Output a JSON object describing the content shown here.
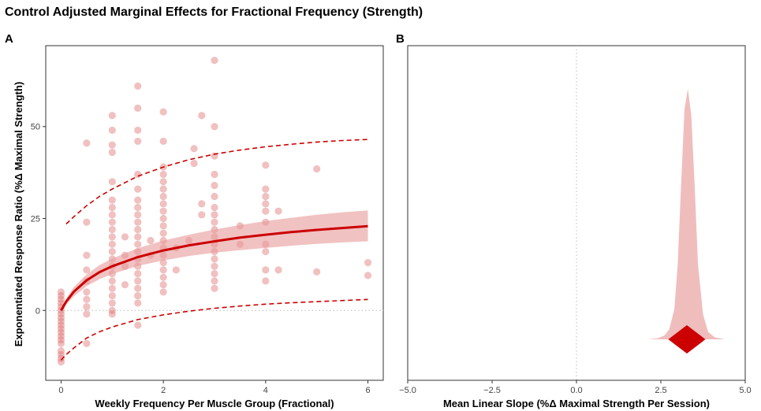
{
  "title": "Control Adjusted Marginal Effects for Fractional Frequency (Strength)",
  "colors": {
    "accent": "#cc0000",
    "band": "#e89a9a",
    "point": "#dd6a6a"
  },
  "chart_data": [
    {
      "panel": "A",
      "type": "scatter",
      "xlabel": "Weekly Frequency Per Muscle Group (Fractional)",
      "ylabel": "Exponentiated Response Ratio (%Δ Maximal Strength)",
      "xlim": [
        -0.3,
        6.3
      ],
      "ylim": [
        -19,
        72
      ],
      "xticks": [
        0,
        2,
        4,
        6
      ],
      "yticks": [
        0,
        25,
        50
      ],
      "reference_line_y": 0,
      "fit": {
        "x": [
          0,
          0.1,
          0.25,
          0.5,
          0.75,
          1,
          1.5,
          2,
          2.5,
          3,
          3.5,
          4,
          4.5,
          5,
          5.5,
          6
        ],
        "mean": [
          0,
          2.4,
          5.1,
          8.2,
          10.4,
          12.0,
          14.5,
          16.3,
          17.7,
          18.8,
          19.8,
          20.6,
          21.3,
          21.9,
          22.4,
          22.9
        ],
        "lower": [
          -0.5,
          1.6,
          3.8,
          6.6,
          8.5,
          9.9,
          12.1,
          13.6,
          14.8,
          15.7,
          16.4,
          17.0,
          17.6,
          18.1,
          18.5,
          18.8
        ],
        "upper": [
          0.5,
          3.2,
          6.4,
          9.8,
          12.3,
          14.1,
          16.9,
          19.0,
          20.6,
          22.0,
          23.2,
          24.3,
          25.2,
          26.0,
          26.7,
          27.2
        ],
        "pred_lower": [
          -13.5,
          -12.0,
          -10.2,
          -7.5,
          -5.8,
          -4.5,
          -2.5,
          -1.2,
          -0.2,
          0.6,
          1.2,
          1.7,
          2.1,
          2.4,
          2.7,
          3.0
        ],
        "pred_upper": [
          22.0,
          23.5,
          25.5,
          28.5,
          31.0,
          33.0,
          36.5,
          39.0,
          41.0,
          42.5,
          43.6,
          44.5,
          45.2,
          45.8,
          46.2,
          46.5
        ]
      },
      "points": [
        {
          "x": 0,
          "y": 3
        },
        {
          "x": 0,
          "y": 1
        },
        {
          "x": 0,
          "y": -1
        },
        {
          "x": 0,
          "y": -2
        },
        {
          "x": 0,
          "y": -3
        },
        {
          "x": 0,
          "y": -4
        },
        {
          "x": 0,
          "y": -5
        },
        {
          "x": 0,
          "y": -6
        },
        {
          "x": 0,
          "y": -8
        },
        {
          "x": 0,
          "y": -9
        },
        {
          "x": 0,
          "y": -11
        },
        {
          "x": 0,
          "y": -12
        },
        {
          "x": 0,
          "y": -13
        },
        {
          "x": 0,
          "y": 0
        },
        {
          "x": 0,
          "y": 2
        },
        {
          "x": 0,
          "y": 4
        },
        {
          "x": 0,
          "y": 5
        },
        {
          "x": 0,
          "y": -7
        },
        {
          "x": 0,
          "y": -14
        },
        {
          "x": 0.5,
          "y": 45.5
        },
        {
          "x": 0.5,
          "y": 15
        },
        {
          "x": 0.5,
          "y": 8
        },
        {
          "x": 0.5,
          "y": 5
        },
        {
          "x": 0.5,
          "y": 3
        },
        {
          "x": 0.5,
          "y": 1
        },
        {
          "x": 0.5,
          "y": -1
        },
        {
          "x": 0.5,
          "y": -9
        },
        {
          "x": 0.5,
          "y": 11
        },
        {
          "x": 0.5,
          "y": 24
        },
        {
          "x": 1,
          "y": 53
        },
        {
          "x": 1,
          "y": 49
        },
        {
          "x": 1,
          "y": 45
        },
        {
          "x": 1,
          "y": 43
        },
        {
          "x": 1,
          "y": 35
        },
        {
          "x": 1,
          "y": 30
        },
        {
          "x": 1,
          "y": 28
        },
        {
          "x": 1,
          "y": 26
        },
        {
          "x": 1,
          "y": 24
        },
        {
          "x": 1,
          "y": 22
        },
        {
          "x": 1,
          "y": 20
        },
        {
          "x": 1,
          "y": 18
        },
        {
          "x": 1,
          "y": 16
        },
        {
          "x": 1,
          "y": 14
        },
        {
          "x": 1,
          "y": 12
        },
        {
          "x": 1,
          "y": 10
        },
        {
          "x": 1,
          "y": 8
        },
        {
          "x": 1,
          "y": 6
        },
        {
          "x": 1,
          "y": 4
        },
        {
          "x": 1,
          "y": 2
        },
        {
          "x": 1,
          "y": 0
        },
        {
          "x": 1,
          "y": -1
        },
        {
          "x": 1.25,
          "y": 20
        },
        {
          "x": 1.25,
          "y": 15
        },
        {
          "x": 1.25,
          "y": 12
        },
        {
          "x": 1.25,
          "y": 7
        },
        {
          "x": 1.5,
          "y": 61
        },
        {
          "x": 1.5,
          "y": 55
        },
        {
          "x": 1.5,
          "y": 49
        },
        {
          "x": 1.5,
          "y": 46
        },
        {
          "x": 1.5,
          "y": 37
        },
        {
          "x": 1.5,
          "y": 33
        },
        {
          "x": 1.5,
          "y": 30
        },
        {
          "x": 1.5,
          "y": 28
        },
        {
          "x": 1.5,
          "y": 26
        },
        {
          "x": 1.5,
          "y": 24
        },
        {
          "x": 1.5,
          "y": 22
        },
        {
          "x": 1.5,
          "y": 20
        },
        {
          "x": 1.5,
          "y": 18
        },
        {
          "x": 1.5,
          "y": 16
        },
        {
          "x": 1.5,
          "y": 14
        },
        {
          "x": 1.5,
          "y": 12
        },
        {
          "x": 1.5,
          "y": 10
        },
        {
          "x": 1.5,
          "y": 8
        },
        {
          "x": 1.5,
          "y": 6
        },
        {
          "x": 1.5,
          "y": 4
        },
        {
          "x": 1.5,
          "y": 2
        },
        {
          "x": 1.5,
          "y": -4
        },
        {
          "x": 1.75,
          "y": 19
        },
        {
          "x": 1.75,
          "y": 15
        },
        {
          "x": 2,
          "y": 54
        },
        {
          "x": 2,
          "y": 46
        },
        {
          "x": 2,
          "y": 39
        },
        {
          "x": 2,
          "y": 37
        },
        {
          "x": 2,
          "y": 35
        },
        {
          "x": 2,
          "y": 33
        },
        {
          "x": 2,
          "y": 31
        },
        {
          "x": 2,
          "y": 29
        },
        {
          "x": 2,
          "y": 27
        },
        {
          "x": 2,
          "y": 25
        },
        {
          "x": 2,
          "y": 23
        },
        {
          "x": 2,
          "y": 21
        },
        {
          "x": 2,
          "y": 19
        },
        {
          "x": 2,
          "y": 17
        },
        {
          "x": 2,
          "y": 15
        },
        {
          "x": 2,
          "y": 13
        },
        {
          "x": 2,
          "y": 11
        },
        {
          "x": 2,
          "y": 9
        },
        {
          "x": 2,
          "y": 7
        },
        {
          "x": 2,
          "y": 5
        },
        {
          "x": 2.25,
          "y": 11
        },
        {
          "x": 2.25,
          "y": 17
        },
        {
          "x": 2.5,
          "y": 19
        },
        {
          "x": 2.6,
          "y": 44
        },
        {
          "x": 2.6,
          "y": 40
        },
        {
          "x": 2.75,
          "y": 53
        },
        {
          "x": 2.75,
          "y": 29
        },
        {
          "x": 2.75,
          "y": 26
        },
        {
          "x": 3,
          "y": 68
        },
        {
          "x": 3,
          "y": 50
        },
        {
          "x": 3,
          "y": 42
        },
        {
          "x": 3,
          "y": 37
        },
        {
          "x": 3,
          "y": 34
        },
        {
          "x": 3,
          "y": 31
        },
        {
          "x": 3,
          "y": 28
        },
        {
          "x": 3,
          "y": 26
        },
        {
          "x": 3,
          "y": 24
        },
        {
          "x": 3,
          "y": 22
        },
        {
          "x": 3,
          "y": 20
        },
        {
          "x": 3,
          "y": 18
        },
        {
          "x": 3,
          "y": 16
        },
        {
          "x": 3,
          "y": 14
        },
        {
          "x": 3,
          "y": 12
        },
        {
          "x": 3,
          "y": 10
        },
        {
          "x": 3,
          "y": 8
        },
        {
          "x": 3,
          "y": 6
        },
        {
          "x": 3.5,
          "y": 23
        },
        {
          "x": 3.5,
          "y": 18
        },
        {
          "x": 4,
          "y": 39.5
        },
        {
          "x": 4,
          "y": 33
        },
        {
          "x": 4,
          "y": 31
        },
        {
          "x": 4,
          "y": 29
        },
        {
          "x": 4,
          "y": 27
        },
        {
          "x": 4,
          "y": 24
        },
        {
          "x": 4,
          "y": 18
        },
        {
          "x": 4,
          "y": 16
        },
        {
          "x": 4,
          "y": 11
        },
        {
          "x": 4,
          "y": 8
        },
        {
          "x": 4.25,
          "y": 27
        },
        {
          "x": 4.25,
          "y": 11
        },
        {
          "x": 5,
          "y": 38.5
        },
        {
          "x": 5,
          "y": 10.5
        },
        {
          "x": 6,
          "y": 13
        },
        {
          "x": 6,
          "y": 9.5
        }
      ]
    },
    {
      "panel": "B",
      "type": "area",
      "xlabel": "Mean Linear Slope (%Δ Maximal Strength Per Session)",
      "xlim": [
        -5.0,
        5.0
      ],
      "xticks": [
        -5.0,
        -2.5,
        0.0,
        2.5,
        5.0
      ],
      "xtick_labels": [
        "−5.0",
        "−2.5",
        "0.0",
        "2.5",
        "5.0"
      ],
      "reference_line_x": 0,
      "density": {
        "x": [
          2.1,
          2.4,
          2.6,
          2.75,
          2.9,
          3.0,
          3.1,
          3.2,
          3.3,
          3.4,
          3.5,
          3.6,
          3.75,
          3.9,
          4.1,
          4.4
        ],
        "height": [
          0,
          0.004,
          0.015,
          0.04,
          0.12,
          0.3,
          0.62,
          0.92,
          1.0,
          0.9,
          0.62,
          0.3,
          0.1,
          0.03,
          0.008,
          0
        ]
      },
      "point_estimate": 3.27,
      "interval_half_width": 0.55
    }
  ]
}
